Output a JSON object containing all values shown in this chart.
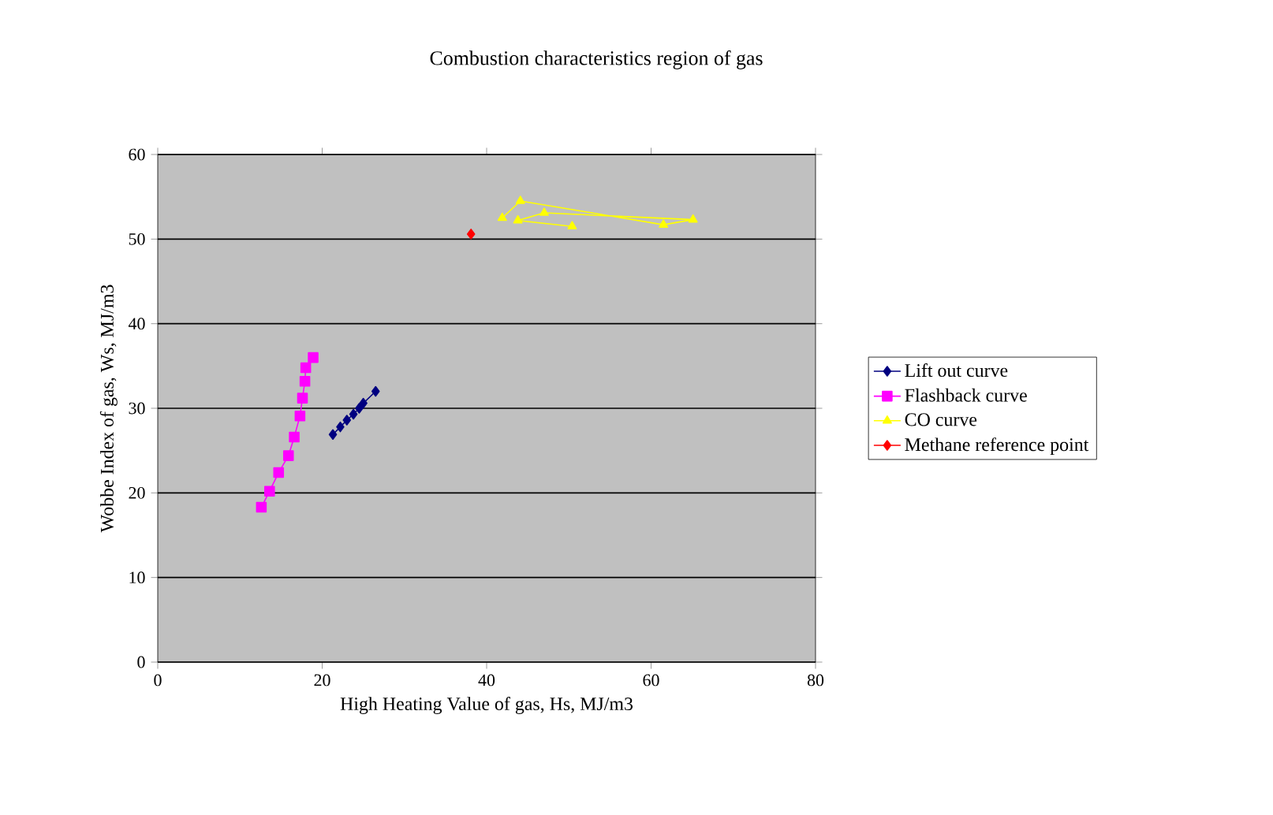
{
  "chart_data": {
    "type": "line",
    "title": "Combustion characteristics region of gas",
    "xlabel": "High Heating Value of gas, Hs, MJ/m3",
    "ylabel": "Wobbe Index of gas, Ws, MJ/m3",
    "xlim": [
      0,
      80
    ],
    "xticks": [
      0,
      20,
      40,
      60,
      80
    ],
    "ylim": [
      0,
      60
    ],
    "yticks": [
      0,
      10,
      20,
      30,
      40,
      50,
      60
    ],
    "grid": "y",
    "legend": "right",
    "line_style": "solid",
    "series": [
      {
        "name": "Lift out curve",
        "color": "#000080",
        "marker": "diamond",
        "x": [
          21.3,
          22.2,
          23.0,
          23.8,
          24.5,
          25.0,
          26.5
        ],
        "values": [
          26.9,
          27.8,
          28.6,
          29.3,
          30.0,
          30.6,
          32.0
        ]
      },
      {
        "name": "Flashback curve",
        "color": "#ff00ff",
        "marker": "square",
        "x": [
          12.6,
          13.6,
          14.7,
          15.9,
          16.6,
          17.3,
          17.6,
          17.9,
          18.0,
          18.9
        ],
        "values": [
          18.3,
          20.2,
          22.4,
          24.4,
          26.6,
          29.1,
          31.2,
          33.2,
          34.8,
          36.0
        ]
      },
      {
        "name": "CO curve",
        "color": "#ffff00",
        "marker": "triangle",
        "x": [
          41.9,
          44.1,
          61.5,
          65.1,
          47.0,
          43.8,
          50.4
        ],
        "values": [
          52.5,
          54.5,
          51.7,
          52.3,
          53.1,
          52.2,
          51.5
        ]
      },
      {
        "name": "Methane reference point",
        "color": "#ff0000",
        "marker": "diamond",
        "x": [
          38.1
        ],
        "values": [
          50.6
        ]
      }
    ]
  }
}
